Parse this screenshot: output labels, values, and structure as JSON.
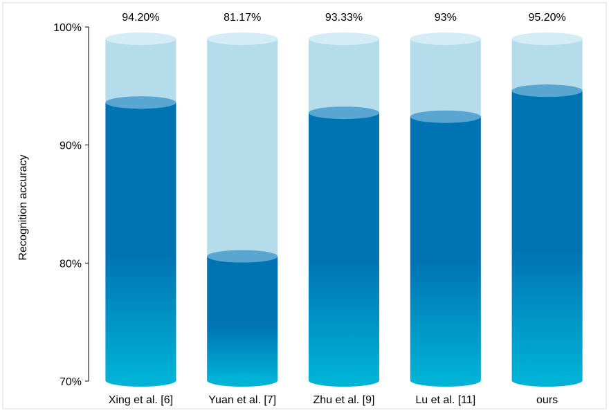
{
  "chart_data": {
    "type": "bar",
    "title": "",
    "xlabel": "",
    "ylabel": "Recognition accuracy",
    "ylim": [
      70,
      100
    ],
    "yticks": [
      70,
      80,
      90,
      100
    ],
    "ytick_labels": [
      "70%",
      "80%",
      "90%",
      "100%"
    ],
    "categories": [
      "Xing et al. [6]",
      "Yuan et al. [7]",
      "Zhu et al. [9]",
      "Lu et al. [11]",
      "ours"
    ],
    "values": [
      94.2,
      81.17,
      93.33,
      93,
      95.2
    ],
    "data_labels": [
      "94.20%",
      "81.17%",
      "93.33%",
      "93%",
      "95.20%"
    ],
    "grid": false,
    "legend": "none",
    "bar_style": "cylinder",
    "colors": {
      "fill_top": "#0073b3",
      "fill_bottom": "#00b3d6",
      "cap": "#5aa6d2",
      "background_cylinder": "#b5dcea",
      "background_cap": "#d3ecf6",
      "axis": "#000000",
      "frame": "#d9d9d9"
    }
  }
}
